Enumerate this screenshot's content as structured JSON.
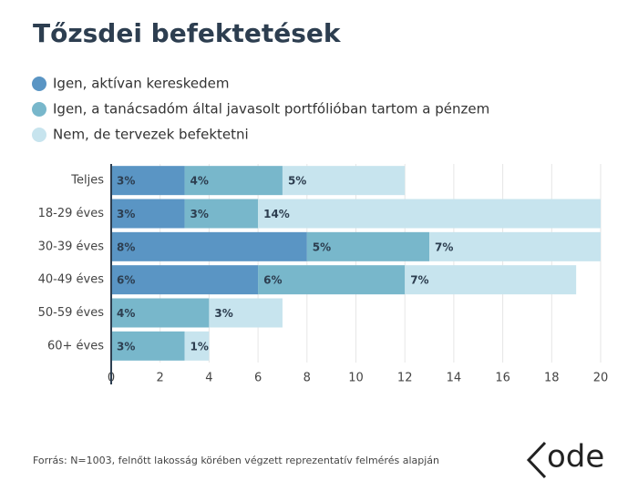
{
  "chart_data": {
    "type": "stacked-bar-horizontal",
    "title": "Tőzsdei befektetések",
    "categories": [
      "Teljes",
      "18-29 éves",
      "30-39 éves",
      "40-49 éves",
      "50-59 éves",
      "60+ éves"
    ],
    "series": [
      {
        "name": "Igen, aktívan kereskedem",
        "color": "#5a95c4",
        "values": [
          3,
          3,
          8,
          6,
          null,
          null
        ],
        "value_labels": [
          "3%",
          "3%",
          "8%",
          "6%",
          null,
          null
        ]
      },
      {
        "name": "Igen, a tanácsadóm által javasolt portfólióban tartom a pénzem",
        "color": "#78b7cb",
        "values": [
          4,
          3,
          5,
          6,
          4,
          3
        ],
        "value_labels": [
          "4%",
          "3%",
          "5%",
          "6%",
          "4%",
          "3%"
        ]
      },
      {
        "name": "Nem, de tervezek befektetni",
        "color": "#c7e4ee",
        "values": [
          5,
          14,
          7,
          7,
          3,
          1
        ],
        "value_labels": [
          "5%",
          "14%",
          "7%",
          "7%",
          "3%",
          "1%"
        ]
      }
    ],
    "xlim": [
      0,
      20
    ],
    "xticks": [
      0,
      2,
      4,
      6,
      8,
      10,
      12,
      14,
      16,
      18,
      20
    ],
    "grid": true,
    "source": "Forrás: N=1003, felnőtt lakosság körében végzett reprezentatív felmérés alapján",
    "logo_text": "ode"
  }
}
